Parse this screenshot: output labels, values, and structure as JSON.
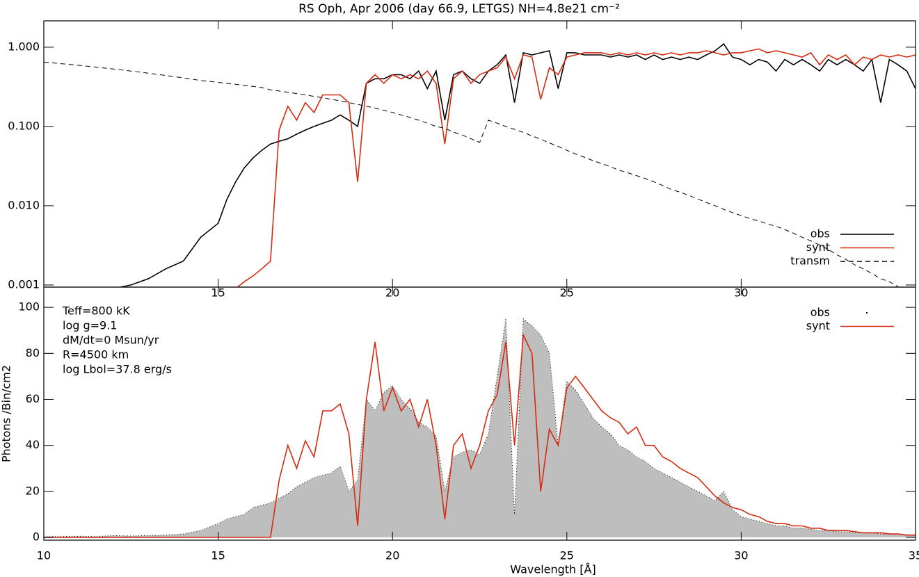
{
  "chart_data": [
    {
      "type": "line",
      "title": "RS Oph, Apr 2006 (day 66.9, LETGS)  NH=4.8e21 cm⁻²",
      "log_y": true,
      "xlim": [
        10,
        35
      ],
      "xticks": [
        15,
        20,
        25,
        30
      ],
      "ylim": [
        0.00094,
        2.15
      ],
      "yticks": [
        {
          "value": 0.001,
          "label": "0.001"
        },
        {
          "value": 0.01,
          "label": "0.010"
        },
        {
          "value": 0.1,
          "label": "0.100"
        },
        {
          "value": 1,
          "label": "1.000"
        }
      ],
      "legend": "lower right",
      "x": [
        10,
        10.5,
        11,
        11.5,
        12,
        12.5,
        13,
        13.5,
        14,
        14.5,
        15,
        15.25,
        15.5,
        15.75,
        16,
        16.25,
        16.5,
        16.75,
        17,
        17.25,
        17.5,
        17.75,
        18,
        18.25,
        18.5,
        18.75,
        19,
        19.25,
        19.5,
        19.75,
        20,
        20.25,
        20.5,
        20.75,
        21,
        21.25,
        21.5,
        21.75,
        22,
        22.25,
        22.5,
        22.75,
        23,
        23.25,
        23.5,
        23.75,
        24,
        24.25,
        24.5,
        24.75,
        25,
        25.25,
        25.5,
        25.75,
        26,
        26.25,
        26.5,
        26.75,
        27,
        27.25,
        27.5,
        27.75,
        28,
        28.25,
        28.5,
        28.75,
        29,
        29.25,
        29.5,
        29.75,
        30,
        30.25,
        30.5,
        30.75,
        31,
        31.25,
        31.5,
        31.75,
        32,
        32.25,
        32.5,
        32.75,
        33,
        33.25,
        33.5,
        33.75,
        34,
        34.25,
        34.5,
        34.75,
        35
      ],
      "series": [
        {
          "name": "obs",
          "color": "#000000",
          "style": "solid",
          "values": [
            0.0009,
            0.0008,
            0.0009,
            0.0008,
            0.0009,
            0.001,
            0.0012,
            0.0016,
            0.002,
            0.004,
            0.006,
            0.012,
            0.02,
            0.03,
            0.04,
            0.05,
            0.06,
            0.065,
            0.07,
            0.08,
            0.09,
            0.1,
            0.11,
            0.12,
            0.14,
            0.12,
            0.1,
            0.35,
            0.4,
            0.4,
            0.45,
            0.45,
            0.4,
            0.5,
            0.3,
            0.5,
            0.12,
            0.45,
            0.5,
            0.4,
            0.35,
            0.5,
            0.6,
            0.8,
            0.2,
            0.85,
            0.8,
            0.85,
            0.9,
            0.3,
            0.85,
            0.85,
            0.8,
            0.8,
            0.8,
            0.75,
            0.8,
            0.75,
            0.8,
            0.7,
            0.8,
            0.7,
            0.75,
            0.7,
            0.75,
            0.7,
            0.8,
            0.9,
            1.1,
            0.75,
            0.7,
            0.6,
            0.7,
            0.65,
            0.5,
            0.7,
            0.6,
            0.7,
            0.6,
            0.5,
            0.7,
            0.6,
            0.7,
            0.6,
            0.5,
            0.7,
            0.2,
            0.7,
            0.6,
            0.5,
            0.3
          ]
        },
        {
          "name": "synt",
          "color": "#d42a10",
          "style": "solid",
          "values": [
            null,
            null,
            null,
            null,
            null,
            null,
            null,
            null,
            null,
            null,
            null,
            null,
            0.0009,
            0.0011,
            0.0013,
            0.0016,
            0.002,
            0.09,
            0.18,
            0.12,
            0.2,
            0.15,
            0.25,
            0.25,
            0.25,
            0.2,
            0.02,
            0.35,
            0.45,
            0.35,
            0.45,
            0.4,
            0.45,
            0.4,
            0.5,
            0.35,
            0.06,
            0.4,
            0.5,
            0.35,
            0.45,
            0.5,
            0.55,
            0.75,
            0.4,
            0.8,
            0.75,
            0.22,
            0.55,
            0.45,
            0.75,
            0.8,
            0.85,
            0.85,
            0.85,
            0.8,
            0.85,
            0.8,
            0.85,
            0.8,
            0.85,
            0.8,
            0.85,
            0.8,
            0.85,
            0.85,
            0.9,
            0.85,
            0.8,
            0.85,
            0.85,
            0.9,
            0.95,
            0.85,
            0.9,
            0.85,
            0.8,
            0.75,
            0.85,
            0.6,
            0.8,
            0.7,
            0.8,
            0.6,
            0.75,
            0.7,
            0.8,
            0.75,
            0.8,
            0.75,
            0.8
          ]
        },
        {
          "name": "transm",
          "color": "#000000",
          "style": "dashed",
          "values": [
            0.65,
            0.62,
            0.59,
            0.56,
            0.53,
            0.5,
            0.47,
            0.44,
            0.41,
            0.38,
            0.36,
            0.35,
            0.34,
            0.33,
            0.32,
            0.31,
            0.29,
            0.28,
            0.27,
            0.26,
            0.25,
            0.24,
            0.23,
            0.22,
            0.21,
            0.2,
            0.19,
            0.18,
            0.17,
            0.16,
            0.15,
            0.14,
            0.13,
            0.12,
            0.11,
            0.1,
            0.095,
            0.085,
            0.078,
            0.07,
            0.063,
            0.12,
            0.11,
            0.1,
            0.092,
            0.084,
            0.076,
            0.069,
            0.062,
            0.056,
            0.05,
            0.045,
            0.041,
            0.037,
            0.034,
            0.031,
            0.028,
            0.026,
            0.024,
            0.022,
            0.02,
            0.018,
            0.016,
            0.0148,
            0.0135,
            0.0122,
            0.011,
            0.01,
            0.009,
            0.0082,
            0.0075,
            0.0069,
            0.0064,
            0.0059,
            0.0055,
            0.005,
            0.0045,
            0.004,
            0.0036,
            0.0032,
            0.0028,
            0.0024,
            0.0021,
            0.0018,
            0.0016,
            0.0014,
            0.0012,
            0.0011,
            0.00095,
            0.00082,
            0.0007
          ]
        }
      ]
    },
    {
      "type": "line",
      "xlabel": "Wavelength [Å]",
      "ylabel": "Photons /Bin/cm2",
      "xlim": [
        10,
        35
      ],
      "xticks": [
        10,
        15,
        20,
        25,
        30,
        35
      ],
      "ylim": [
        -1.2,
        108.8
      ],
      "yticks": [
        0,
        20,
        40,
        60,
        80,
        100
      ],
      "legend": "upper right",
      "annotations": [
        "Teff=800 kK",
        "log g=9.1",
        "dM/dt=0 Msun/yr",
        "R=4500 km",
        "log Lbol=37.8 erg/s"
      ],
      "x": [
        10,
        10.5,
        11,
        11.5,
        12,
        12.5,
        13,
        13.5,
        14,
        14.5,
        15,
        15.25,
        15.5,
        15.75,
        16,
        16.25,
        16.5,
        16.75,
        17,
        17.25,
        17.5,
        17.75,
        18,
        18.25,
        18.5,
        18.75,
        19,
        19.25,
        19.5,
        19.75,
        20,
        20.25,
        20.5,
        20.75,
        21,
        21.25,
        21.5,
        21.75,
        22,
        22.25,
        22.5,
        22.75,
        23,
        23.25,
        23.5,
        23.75,
        24,
        24.25,
        24.5,
        24.75,
        25,
        25.25,
        25.5,
        25.75,
        26,
        26.25,
        26.5,
        26.75,
        27,
        27.25,
        27.5,
        27.75,
        28,
        28.25,
        28.5,
        28.75,
        29,
        29.25,
        29.5,
        29.75,
        30,
        30.25,
        30.5,
        30.75,
        31,
        31.25,
        31.5,
        31.75,
        32,
        32.25,
        32.5,
        32.75,
        33,
        33.25,
        33.5,
        33.75,
        34,
        34.25,
        34.5,
        34.75,
        35
      ],
      "series": [
        {
          "name": "obs",
          "color": "#bebebe",
          "style": "area",
          "values": [
            0.3,
            0.4,
            0.5,
            0.4,
            0.8,
            0.6,
            0.8,
            1,
            1.5,
            3,
            6,
            8,
            9,
            10,
            13,
            14,
            15,
            17,
            19,
            22,
            24,
            26,
            27,
            28,
            31,
            20,
            25,
            60,
            55,
            63,
            66,
            60,
            56,
            50,
            48,
            44,
            20,
            35,
            37,
            38,
            36,
            45,
            70,
            95,
            10,
            95,
            92,
            88,
            80,
            40,
            68,
            64,
            58,
            52,
            48,
            45,
            40,
            38,
            35,
            33,
            30,
            28,
            26,
            24,
            22,
            20,
            18,
            16,
            20,
            12,
            9,
            8,
            7,
            6,
            5,
            5,
            4,
            4,
            3.5,
            3,
            3,
            2.5,
            2.5,
            2,
            2,
            2,
            1.5,
            1.5,
            1.5,
            1.2,
            1
          ]
        },
        {
          "name": "synt",
          "color": "#d42a10",
          "style": "solid",
          "values": [
            0,
            0,
            0,
            0,
            0,
            0,
            0,
            0,
            0,
            0,
            0,
            0,
            0,
            0,
            0,
            0,
            0,
            25,
            40,
            30,
            42,
            35,
            55,
            55,
            58,
            45,
            5,
            60,
            85,
            55,
            65,
            55,
            60,
            48,
            60,
            40,
            8,
            40,
            45,
            30,
            40,
            55,
            62,
            85,
            40,
            88,
            80,
            20,
            47,
            40,
            65,
            70,
            65,
            60,
            55,
            52,
            50,
            45,
            48,
            40,
            40,
            35,
            33,
            30,
            28,
            26,
            22,
            18,
            15,
            13,
            12,
            10,
            9,
            7,
            6,
            6,
            5,
            5,
            4,
            4,
            3,
            3,
            3,
            2.5,
            2,
            2,
            2,
            1.5,
            1.5,
            1,
            1
          ]
        }
      ]
    }
  ]
}
